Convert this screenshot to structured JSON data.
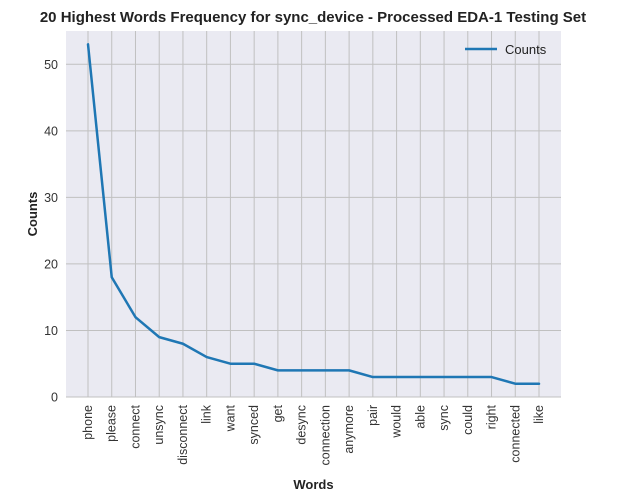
{
  "chart_data": {
    "type": "line",
    "title": "20 Highest Words Frequency for sync_device - Processed EDA-1 Testing Set",
    "xlabel": "Words",
    "ylabel": "Counts",
    "categories": [
      "phone",
      "please",
      "connect",
      "unsync",
      "disconnect",
      "link",
      "want",
      "synced",
      "get",
      "desync",
      "connection",
      "anymore",
      "pair",
      "would",
      "able",
      "sync",
      "could",
      "right",
      "connected",
      "like"
    ],
    "series": [
      {
        "name": "Counts",
        "values": [
          53,
          18,
          12,
          9,
          8,
          6,
          5,
          5,
          4,
          4,
          4,
          4,
          3,
          3,
          3,
          3,
          3,
          3,
          2,
          2
        ],
        "color": "#1f77b4"
      }
    ],
    "ylim": [
      0,
      55
    ],
    "yticks": [
      0,
      10,
      20,
      30,
      40,
      50
    ],
    "grid": true,
    "legend_position": "top-right",
    "colors": {
      "background": "#eaeaf2",
      "grid": "#c0c0c0",
      "line": "#1f77b4"
    }
  }
}
